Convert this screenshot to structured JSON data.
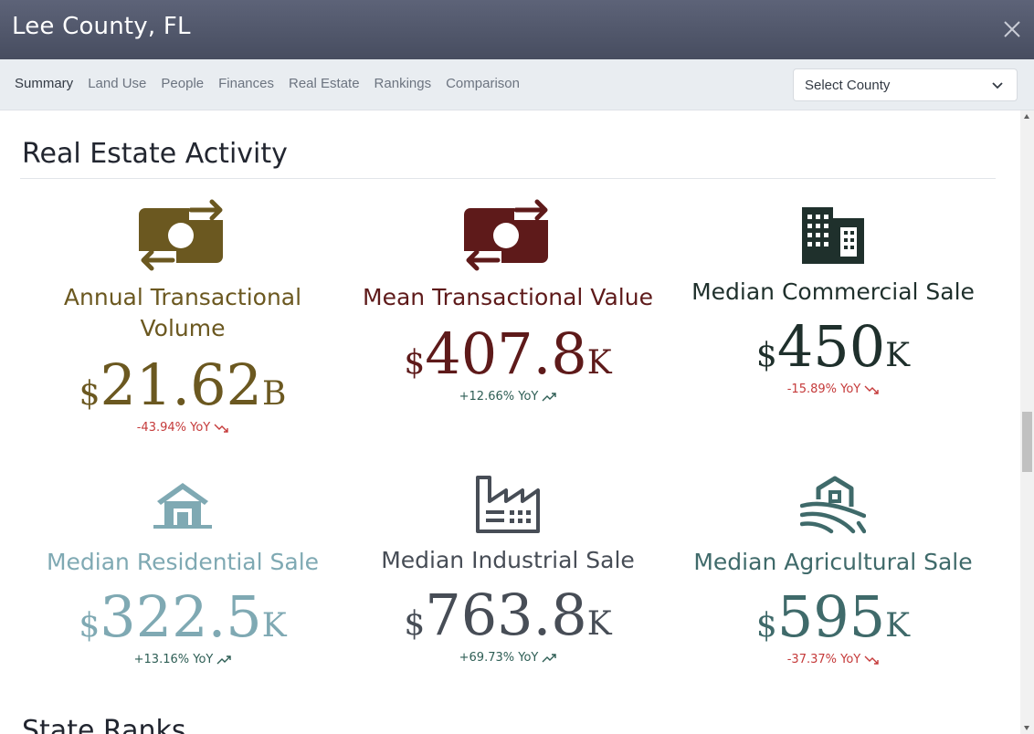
{
  "header": {
    "title": "Lee County, FL"
  },
  "nav": {
    "tabs": [
      {
        "label": "Summary"
      },
      {
        "label": "Land Use"
      },
      {
        "label": "People"
      },
      {
        "label": "Finances"
      },
      {
        "label": "Real Estate"
      },
      {
        "label": "Rankings"
      },
      {
        "label": "Comparison"
      }
    ],
    "active_tab": "Summary",
    "county_select": {
      "value": "Select County"
    }
  },
  "section": {
    "title": "Real Estate Activity"
  },
  "next_section": {
    "title": "State Ranks"
  },
  "metrics": [
    {
      "label": "Annual Transactional Volume",
      "currency": "$",
      "value": "21.62",
      "unit": "B",
      "yoy": "-43.94% YoY",
      "trend": "down",
      "color": "#6b5820",
      "icon": "money-exchange-icon"
    },
    {
      "label": "Mean Transactional Value",
      "currency": "$",
      "value": "407.8",
      "unit": "K",
      "yoy": "+12.66% YoY",
      "trend": "up",
      "color": "#5e1a1a",
      "icon": "money-exchange-icon"
    },
    {
      "label": "Median Commercial Sale",
      "currency": "$",
      "value": "450",
      "unit": "K",
      "yoy": "-15.89% YoY",
      "trend": "down",
      "color": "#1f302c",
      "icon": "commercial-building-icon"
    },
    {
      "label": "Median Residential Sale",
      "currency": "$",
      "value": "322.5",
      "unit": "K",
      "yoy": "+13.16% YoY",
      "trend": "up",
      "color": "#7fa9b3",
      "icon": "house-icon"
    },
    {
      "label": "Median Industrial Sale",
      "currency": "$",
      "value": "763.8",
      "unit": "K",
      "yoy": "+69.73% YoY",
      "trend": "up",
      "color": "#474d56",
      "icon": "factory-icon"
    },
    {
      "label": "Median Agricultural Sale",
      "currency": "$",
      "value": "595",
      "unit": "K",
      "yoy": "-37.37% YoY",
      "trend": "down",
      "color": "#3f6a6a",
      "icon": "barn-field-icon"
    }
  ],
  "colors": {
    "down": "#c53a3a",
    "up": "#2e5e55"
  }
}
